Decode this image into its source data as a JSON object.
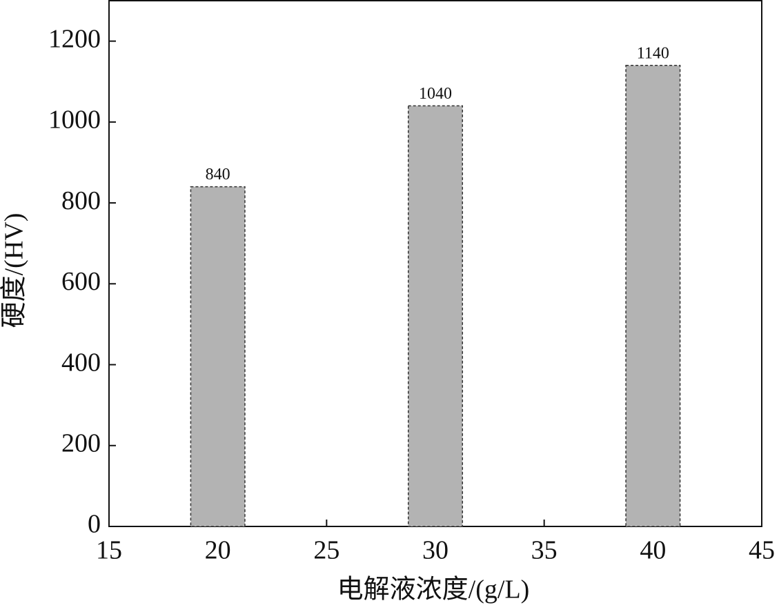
{
  "chart_data": {
    "type": "bar",
    "x": [
      20,
      30,
      40
    ],
    "values": [
      840,
      1040,
      1140
    ],
    "color": "#b3b3b3",
    "xlim": [
      15,
      45
    ],
    "xticks": [
      15,
      20,
      25,
      30,
      35,
      40,
      45
    ],
    "ylim": [
      0,
      1300
    ],
    "yticks": [
      0,
      200,
      400,
      600,
      800,
      1000,
      1200
    ],
    "xlabel": "电解液浓度/(g/L)",
    "ylabel": "硬度/(HV)",
    "grid": false
  }
}
